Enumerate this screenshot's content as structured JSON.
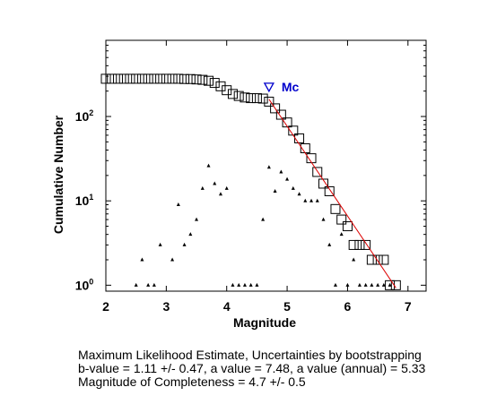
{
  "chart_data": {
    "type": "scatter",
    "xlabel": "Magnitude",
    "ylabel": "Cumulative Number",
    "xlim": [
      2,
      7.3
    ],
    "ylim_log10": [
      -0.1,
      0.859,
      0.859
    ],
    "ylim": [
      0.85,
      800
    ],
    "yscale": "log",
    "x_ticks": [
      "2",
      "3",
      "4",
      "5",
      "6",
      "7"
    ],
    "y_ticks": [
      {
        "base": "10",
        "exp": "0",
        "value": 1
      },
      {
        "base": "10",
        "exp": "1",
        "value": 10
      },
      {
        "base": "10",
        "exp": "2",
        "value": 100
      }
    ],
    "series": [
      {
        "marker": "square",
        "values": [
          [
            2.0,
            280
          ],
          [
            2.1,
            280
          ],
          [
            2.2,
            280
          ],
          [
            2.3,
            280
          ],
          [
            2.4,
            280
          ],
          [
            2.5,
            280
          ],
          [
            2.6,
            280
          ],
          [
            2.7,
            280
          ],
          [
            2.8,
            280
          ],
          [
            2.9,
            280
          ],
          [
            3.0,
            280
          ],
          [
            3.1,
            280
          ],
          [
            3.2,
            280
          ],
          [
            3.3,
            278
          ],
          [
            3.4,
            278
          ],
          [
            3.5,
            275
          ],
          [
            3.6,
            272
          ],
          [
            3.7,
            265
          ],
          [
            3.8,
            250
          ],
          [
            3.9,
            228
          ],
          [
            4.0,
            205
          ],
          [
            4.1,
            185
          ],
          [
            4.2,
            175
          ],
          [
            4.3,
            168
          ],
          [
            4.4,
            165
          ],
          [
            4.5,
            165
          ],
          [
            4.6,
            163
          ],
          [
            4.7,
            150
          ],
          [
            4.8,
            125
          ],
          [
            4.9,
            105
          ],
          [
            5.0,
            85
          ],
          [
            5.1,
            68
          ],
          [
            5.2,
            55
          ],
          [
            5.3,
            42
          ],
          [
            5.4,
            32
          ],
          [
            5.5,
            22
          ],
          [
            5.6,
            16
          ],
          [
            5.7,
            13
          ],
          [
            5.8,
            8
          ],
          [
            5.9,
            6
          ],
          [
            6.0,
            5
          ],
          [
            6.1,
            3
          ],
          [
            6.2,
            3
          ],
          [
            6.3,
            3
          ],
          [
            6.4,
            2
          ],
          [
            6.5,
            2
          ],
          [
            6.6,
            2
          ],
          [
            6.7,
            1
          ],
          [
            6.8,
            1
          ]
        ]
      },
      {
        "marker": "triangle",
        "values": [
          [
            2.5,
            1
          ],
          [
            2.6,
            2
          ],
          [
            2.7,
            1
          ],
          [
            2.8,
            1
          ],
          [
            2.9,
            3
          ],
          [
            3.1,
            2
          ],
          [
            3.2,
            9
          ],
          [
            3.3,
            3
          ],
          [
            3.4,
            4
          ],
          [
            3.5,
            6
          ],
          [
            3.6,
            14
          ],
          [
            3.7,
            26
          ],
          [
            3.8,
            16
          ],
          [
            3.9,
            12
          ],
          [
            4.0,
            14
          ],
          [
            4.1,
            1
          ],
          [
            4.2,
            1
          ],
          [
            4.3,
            1
          ],
          [
            4.4,
            1
          ],
          [
            4.5,
            1
          ],
          [
            4.6,
            6
          ],
          [
            4.7,
            25
          ],
          [
            4.8,
            13
          ],
          [
            4.9,
            22
          ],
          [
            5.0,
            18
          ],
          [
            5.1,
            14
          ],
          [
            5.2,
            12
          ],
          [
            5.3,
            10
          ],
          [
            5.4,
            10
          ],
          [
            5.5,
            10
          ],
          [
            5.6,
            6
          ],
          [
            5.7,
            3
          ],
          [
            5.8,
            1
          ],
          [
            5.9,
            4
          ],
          [
            6.0,
            1
          ],
          [
            6.1,
            2
          ],
          [
            6.2,
            1
          ],
          [
            6.3,
            1
          ],
          [
            6.4,
            1
          ],
          [
            6.5,
            1
          ],
          [
            6.6,
            1
          ],
          [
            6.7,
            1
          ]
        ]
      },
      {
        "marker": "line",
        "values": [
          [
            4.7,
            160
          ],
          [
            6.8,
            0.93
          ]
        ]
      }
    ],
    "annotations": [
      {
        "text": "Mc",
        "x": 4.7,
        "y": 225,
        "marker": "inverted-triangle",
        "color": "#0000cc"
      }
    ],
    "colors": {
      "markers": "#000000",
      "fit_line": "#dd0000",
      "mc": "#0000cc"
    }
  },
  "caption": {
    "line1": "Maximum Likelihood Estimate, Uncertainties by bootstrapping",
    "line2": "b-value = 1.11 +/- 0.47,  a value = 7.48,  a value (annual) = 5.33",
    "line3": "Magnitude of Completeness = 4.7 +/- 0.5"
  }
}
